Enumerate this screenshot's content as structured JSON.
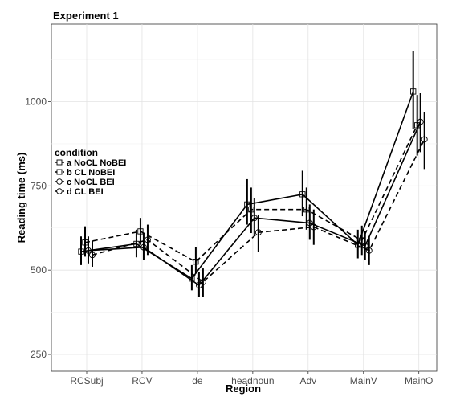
{
  "chart_data": {
    "type": "line",
    "title": "Experiment 1",
    "xlabel": "Region",
    "ylabel": "Reading time (ms)",
    "categories": [
      "RCSubj",
      "RCV",
      "de",
      "headnoun",
      "Adv",
      "MainV",
      "MainO"
    ],
    "yticks": [
      250,
      500,
      750,
      1000
    ],
    "ylim": [
      200,
      1230
    ],
    "grid": true,
    "legend": {
      "title": "condition",
      "position": "left",
      "entries": [
        "a NoCL NoBEI",
        "b CL NoBEI",
        "c NoCL BEI",
        "d CL BEI"
      ]
    },
    "series": [
      {
        "name": "a NoCL NoBEI",
        "marker": "square",
        "dash": "solid",
        "values": [
          555,
          578,
          475,
          695,
          725,
          575,
          1030
        ],
        "ci_low": [
          515,
          538,
          440,
          635,
          660,
          535,
          920
        ],
        "ci_high": [
          600,
          620,
          515,
          770,
          795,
          620,
          1150
        ]
      },
      {
        "name": "b CL NoBEI",
        "marker": "square",
        "dash": "dashed",
        "values": [
          582,
          615,
          525,
          680,
          680,
          588,
          930
        ],
        "ci_low": [
          540,
          575,
          490,
          610,
          620,
          545,
          840
        ],
        "ci_high": [
          630,
          655,
          568,
          745,
          745,
          632,
          1020
        ]
      },
      {
        "name": "c NoCL BEI",
        "marker": "circle",
        "dash": "solid",
        "values": [
          558,
          568,
          455,
          655,
          640,
          572,
          940
        ],
        "ci_low": [
          520,
          530,
          420,
          600,
          590,
          530,
          850
        ],
        "ci_high": [
          600,
          610,
          495,
          715,
          695,
          615,
          1025
        ]
      },
      {
        "name": "d CL BEI",
        "marker": "circle",
        "dash": "dashed",
        "values": [
          545,
          590,
          465,
          612,
          628,
          558,
          888
        ],
        "ci_low": [
          510,
          545,
          420,
          555,
          575,
          515,
          800
        ],
        "ci_high": [
          588,
          635,
          505,
          665,
          680,
          600,
          970
        ]
      }
    ]
  }
}
